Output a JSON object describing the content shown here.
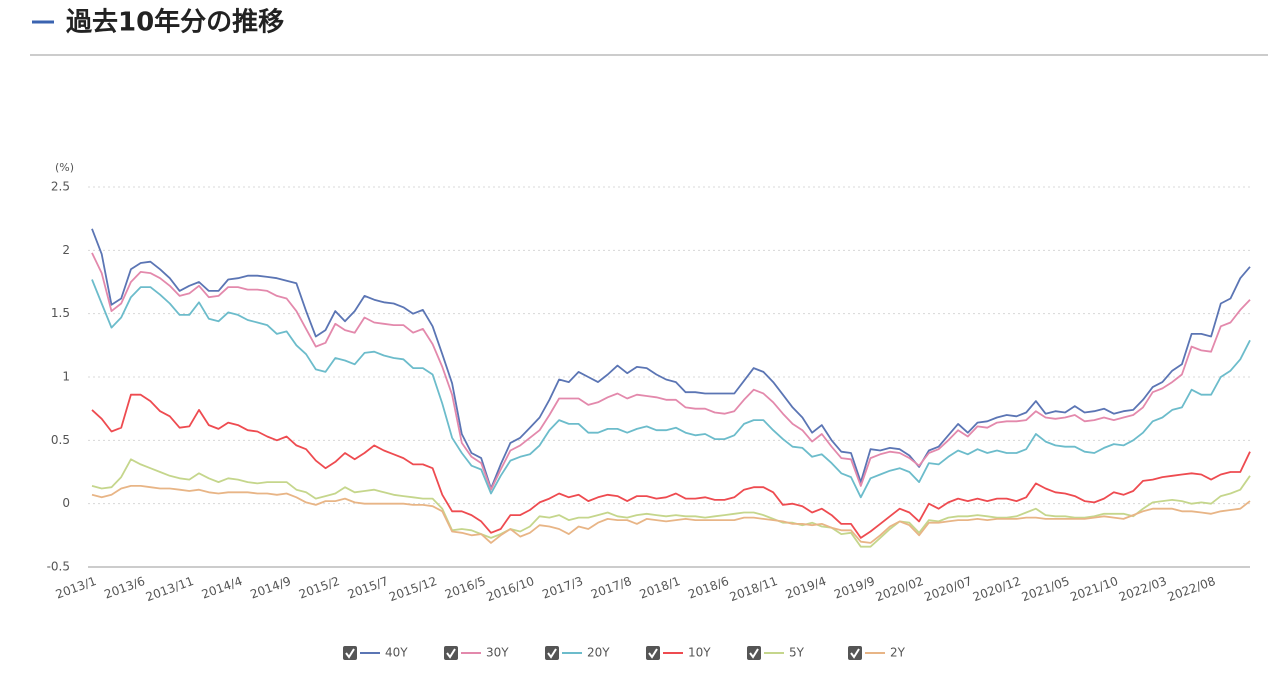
{
  "header": {
    "title": "過去10年分の推移"
  },
  "chart_data": {
    "type": "line",
    "y_unit": "(%)",
    "categories": [
      "2013/1",
      null,
      null,
      null,
      null,
      "2013/6",
      null,
      null,
      null,
      null,
      "2013/11",
      null,
      null,
      null,
      null,
      "2014/4",
      null,
      null,
      null,
      null,
      "2014/9",
      null,
      null,
      null,
      null,
      "2015/2",
      null,
      null,
      null,
      null,
      "2015/7",
      null,
      null,
      null,
      null,
      "2015/12",
      null,
      null,
      null,
      null,
      "2016/5",
      null,
      null,
      null,
      null,
      "2016/10",
      null,
      null,
      null,
      null,
      "2017/3",
      null,
      null,
      null,
      null,
      "2017/8",
      null,
      null,
      null,
      null,
      "2018/1",
      null,
      null,
      null,
      null,
      "2018/6",
      null,
      null,
      null,
      null,
      "2018/11",
      null,
      null,
      null,
      null,
      "2019/4",
      null,
      null,
      null,
      null,
      "2019/9",
      null,
      null,
      null,
      null,
      "2020/02",
      null,
      null,
      null,
      null,
      "2020/07",
      null,
      null,
      null,
      null,
      "2020/12",
      null,
      null,
      null,
      null,
      "2021/05",
      null,
      null,
      null,
      null,
      "2021/10",
      null,
      null,
      null,
      null,
      "2022/03",
      null,
      null,
      null,
      null,
      "2022/08",
      null,
      null,
      null,
      null
    ],
    "ylim": [
      -0.5,
      2.5
    ],
    "yticks": [
      -0.5,
      0,
      0.5,
      1,
      1.5,
      2,
      2.5
    ],
    "grid": true,
    "legend": "bottom",
    "series": [
      {
        "name": "40Y",
        "color": "#5b75b4",
        "values": [
          2.17,
          1.97,
          1.57,
          1.62,
          1.85,
          1.9,
          1.91,
          1.85,
          1.78,
          1.68,
          1.72,
          1.75,
          1.68,
          1.68,
          1.77,
          1.78,
          1.8,
          1.8,
          1.79,
          1.78,
          1.76,
          1.74,
          1.52,
          1.32,
          1.37,
          1.52,
          1.44,
          1.52,
          1.64,
          1.61,
          1.59,
          1.58,
          1.55,
          1.5,
          1.53,
          1.4,
          1.18,
          0.95,
          0.55,
          0.4,
          0.36,
          0.12,
          0.31,
          0.48,
          0.52,
          0.6,
          0.68,
          0.82,
          0.98,
          0.96,
          1.04,
          1.0,
          0.96,
          1.02,
          1.09,
          1.03,
          1.08,
          1.07,
          1.02,
          0.98,
          0.96,
          0.88,
          0.88,
          0.87,
          0.87,
          0.87,
          0.87,
          0.97,
          1.07,
          1.04,
          0.96,
          0.86,
          0.76,
          0.68,
          0.56,
          0.62,
          0.5,
          0.41,
          0.4,
          0.17,
          0.43,
          0.42,
          0.44,
          0.43,
          0.38,
          0.29,
          0.42,
          0.45,
          0.54,
          0.63,
          0.56,
          0.64,
          0.65,
          0.68,
          0.7,
          0.69,
          0.72,
          0.81,
          0.71,
          0.73,
          0.72,
          0.77,
          0.72,
          0.73,
          0.75,
          0.71,
          0.73,
          0.74,
          0.82,
          0.92,
          0.96,
          1.05,
          1.1,
          1.34,
          1.34,
          1.32,
          1.58,
          1.62,
          1.78,
          1.87
        ]
      },
      {
        "name": "30Y",
        "color": "#e389ac",
        "values": [
          1.98,
          1.82,
          1.52,
          1.58,
          1.75,
          1.83,
          1.82,
          1.78,
          1.72,
          1.64,
          1.66,
          1.72,
          1.63,
          1.64,
          1.71,
          1.71,
          1.69,
          1.69,
          1.68,
          1.64,
          1.62,
          1.52,
          1.38,
          1.24,
          1.27,
          1.42,
          1.37,
          1.35,
          1.47,
          1.43,
          1.42,
          1.41,
          1.41,
          1.35,
          1.38,
          1.26,
          1.08,
          0.86,
          0.48,
          0.37,
          0.32,
          0.11,
          0.27,
          0.42,
          0.46,
          0.52,
          0.58,
          0.7,
          0.83,
          0.83,
          0.83,
          0.78,
          0.8,
          0.84,
          0.87,
          0.83,
          0.86,
          0.85,
          0.84,
          0.82,
          0.82,
          0.76,
          0.75,
          0.75,
          0.72,
          0.71,
          0.73,
          0.82,
          0.9,
          0.87,
          0.8,
          0.71,
          0.63,
          0.58,
          0.49,
          0.55,
          0.45,
          0.36,
          0.35,
          0.14,
          0.36,
          0.39,
          0.41,
          0.4,
          0.36,
          0.3,
          0.4,
          0.43,
          0.5,
          0.58,
          0.53,
          0.61,
          0.6,
          0.64,
          0.65,
          0.65,
          0.66,
          0.73,
          0.68,
          0.67,
          0.68,
          0.7,
          0.65,
          0.66,
          0.68,
          0.66,
          0.68,
          0.7,
          0.76,
          0.88,
          0.91,
          0.96,
          1.02,
          1.24,
          1.21,
          1.2,
          1.4,
          1.43,
          1.53,
          1.61
        ]
      },
      {
        "name": "20Y",
        "color": "#6cbccb",
        "values": [
          1.77,
          1.58,
          1.39,
          1.47,
          1.63,
          1.71,
          1.71,
          1.65,
          1.58,
          1.49,
          1.49,
          1.59,
          1.46,
          1.44,
          1.51,
          1.49,
          1.45,
          1.43,
          1.41,
          1.34,
          1.36,
          1.25,
          1.18,
          1.06,
          1.04,
          1.15,
          1.13,
          1.1,
          1.19,
          1.2,
          1.17,
          1.15,
          1.14,
          1.07,
          1.07,
          1.02,
          0.79,
          0.52,
          0.4,
          0.3,
          0.27,
          0.08,
          0.22,
          0.34,
          0.37,
          0.39,
          0.46,
          0.58,
          0.66,
          0.63,
          0.63,
          0.56,
          0.56,
          0.59,
          0.59,
          0.56,
          0.59,
          0.61,
          0.58,
          0.58,
          0.6,
          0.56,
          0.54,
          0.55,
          0.51,
          0.51,
          0.54,
          0.63,
          0.66,
          0.66,
          0.58,
          0.51,
          0.45,
          0.44,
          0.37,
          0.39,
          0.32,
          0.24,
          0.21,
          0.05,
          0.2,
          0.23,
          0.26,
          0.28,
          0.25,
          0.17,
          0.32,
          0.31,
          0.37,
          0.42,
          0.39,
          0.43,
          0.4,
          0.42,
          0.4,
          0.4,
          0.43,
          0.55,
          0.49,
          0.46,
          0.45,
          0.45,
          0.41,
          0.4,
          0.44,
          0.47,
          0.46,
          0.5,
          0.56,
          0.65,
          0.68,
          0.74,
          0.76,
          0.9,
          0.86,
          0.86,
          1.0,
          1.05,
          1.14,
          1.29
        ]
      },
      {
        "name": "10Y",
        "color": "#ee4b50",
        "values": [
          0.74,
          0.67,
          0.57,
          0.6,
          0.86,
          0.86,
          0.81,
          0.73,
          0.69,
          0.6,
          0.61,
          0.74,
          0.62,
          0.59,
          0.64,
          0.62,
          0.58,
          0.57,
          0.53,
          0.5,
          0.53,
          0.46,
          0.43,
          0.34,
          0.28,
          0.33,
          0.4,
          0.35,
          0.4,
          0.46,
          0.42,
          0.39,
          0.36,
          0.31,
          0.31,
          0.28,
          0.07,
          -0.06,
          -0.06,
          -0.09,
          -0.14,
          -0.23,
          -0.2,
          -0.09,
          -0.09,
          -0.05,
          0.01,
          0.04,
          0.08,
          0.05,
          0.07,
          0.02,
          0.05,
          0.07,
          0.06,
          0.02,
          0.06,
          0.06,
          0.04,
          0.05,
          0.08,
          0.04,
          0.04,
          0.05,
          0.03,
          0.03,
          0.05,
          0.11,
          0.13,
          0.13,
          0.09,
          -0.01,
          0.0,
          -0.02,
          -0.07,
          -0.04,
          -0.09,
          -0.16,
          -0.16,
          -0.27,
          -0.22,
          -0.16,
          -0.1,
          -0.04,
          -0.07,
          -0.14,
          0.0,
          -0.04,
          0.01,
          0.04,
          0.02,
          0.04,
          0.02,
          0.04,
          0.04,
          0.02,
          0.05,
          0.16,
          0.12,
          0.09,
          0.08,
          0.06,
          0.02,
          0.01,
          0.04,
          0.09,
          0.07,
          0.1,
          0.18,
          0.19,
          0.21,
          0.22,
          0.23,
          0.24,
          0.23,
          0.19,
          0.23,
          0.25,
          0.25,
          0.41
        ]
      },
      {
        "name": "5Y",
        "color": "#c5d68c",
        "values": [
          0.14,
          0.12,
          0.13,
          0.21,
          0.35,
          0.31,
          0.28,
          0.25,
          0.22,
          0.2,
          0.19,
          0.24,
          0.2,
          0.17,
          0.2,
          0.19,
          0.17,
          0.16,
          0.17,
          0.17,
          0.17,
          0.11,
          0.09,
          0.04,
          0.06,
          0.08,
          0.13,
          0.09,
          0.1,
          0.11,
          0.09,
          0.07,
          0.06,
          0.05,
          0.04,
          0.04,
          -0.04,
          -0.21,
          -0.2,
          -0.21,
          -0.24,
          -0.27,
          -0.24,
          -0.2,
          -0.22,
          -0.18,
          -0.1,
          -0.11,
          -0.09,
          -0.13,
          -0.11,
          -0.11,
          -0.09,
          -0.07,
          -0.1,
          -0.11,
          -0.09,
          -0.08,
          -0.09,
          -0.1,
          -0.09,
          -0.1,
          -0.1,
          -0.11,
          -0.1,
          -0.09,
          -0.08,
          -0.07,
          -0.07,
          -0.09,
          -0.12,
          -0.15,
          -0.15,
          -0.17,
          -0.15,
          -0.18,
          -0.19,
          -0.24,
          -0.23,
          -0.34,
          -0.34,
          -0.27,
          -0.2,
          -0.14,
          -0.15,
          -0.23,
          -0.13,
          -0.14,
          -0.11,
          -0.1,
          -0.1,
          -0.09,
          -0.1,
          -0.11,
          -0.11,
          -0.1,
          -0.07,
          -0.04,
          -0.09,
          -0.1,
          -0.1,
          -0.11,
          -0.11,
          -0.1,
          -0.08,
          -0.08,
          -0.08,
          -0.1,
          -0.04,
          0.01,
          0.02,
          0.03,
          0.02,
          0.0,
          0.01,
          0.0,
          0.06,
          0.08,
          0.11,
          0.22
        ]
      },
      {
        "name": "2Y",
        "color": "#e8b586",
        "values": [
          0.07,
          0.05,
          0.07,
          0.12,
          0.14,
          0.14,
          0.13,
          0.12,
          0.12,
          0.11,
          0.1,
          0.11,
          0.09,
          0.08,
          0.09,
          0.09,
          0.09,
          0.08,
          0.08,
          0.07,
          0.08,
          0.05,
          0.01,
          -0.01,
          0.02,
          0.02,
          0.04,
          0.01,
          0.0,
          0.0,
          0.0,
          0.0,
          0.0,
          -0.01,
          -0.01,
          -0.02,
          -0.06,
          -0.22,
          -0.23,
          -0.25,
          -0.24,
          -0.31,
          -0.25,
          -0.2,
          -0.26,
          -0.23,
          -0.17,
          -0.18,
          -0.2,
          -0.24,
          -0.18,
          -0.2,
          -0.15,
          -0.12,
          -0.13,
          -0.13,
          -0.16,
          -0.12,
          -0.13,
          -0.14,
          -0.13,
          -0.12,
          -0.13,
          -0.13,
          -0.13,
          -0.13,
          -0.13,
          -0.11,
          -0.11,
          -0.12,
          -0.13,
          -0.14,
          -0.16,
          -0.16,
          -0.17,
          -0.16,
          -0.19,
          -0.21,
          -0.21,
          -0.3,
          -0.31,
          -0.25,
          -0.18,
          -0.14,
          -0.17,
          -0.25,
          -0.15,
          -0.15,
          -0.14,
          -0.13,
          -0.13,
          -0.12,
          -0.13,
          -0.12,
          -0.12,
          -0.12,
          -0.11,
          -0.11,
          -0.12,
          -0.12,
          -0.12,
          -0.12,
          -0.12,
          -0.11,
          -0.1,
          -0.11,
          -0.12,
          -0.09,
          -0.06,
          -0.04,
          -0.04,
          -0.04,
          -0.06,
          -0.06,
          -0.07,
          -0.08,
          -0.06,
          -0.05,
          -0.04,
          0.02
        ]
      }
    ]
  }
}
